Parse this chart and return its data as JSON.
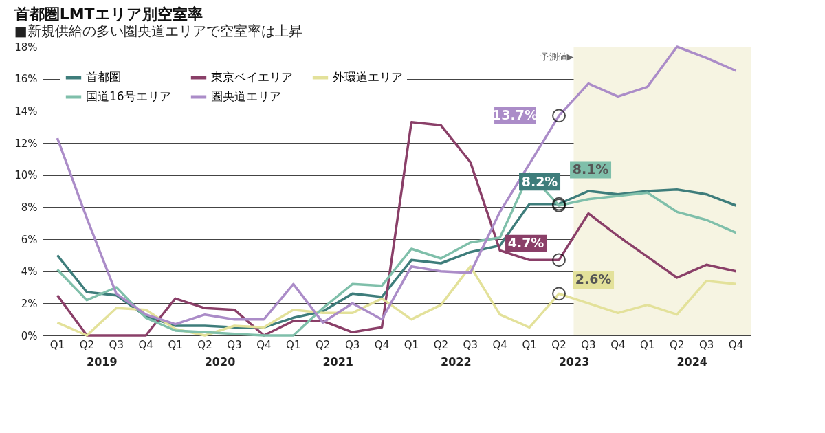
{
  "chart_data": {
    "type": "line",
    "title": "首都圏LMTエリア別空室率",
    "subtitle": "■新規供給の多い圏央道エリアで空室率は上昇",
    "x": [
      2019.125,
      2019.375,
      2019.625,
      2019.875,
      2020.125,
      2020.375,
      2020.625,
      2020.875,
      2021.125,
      2021.375,
      2021.625,
      2021.875,
      2022.125,
      2022.375,
      2022.625,
      2022.875,
      2023.125,
      2023.375,
      2023.625,
      2023.875,
      2024.125,
      2024.375,
      2024.625,
      2024.875
    ],
    "xlim": [
      2019,
      2025
    ],
    "xticks": [
      {
        "value": 2019.5,
        "label": "2019"
      },
      {
        "value": 2020.5,
        "label": "2020"
      },
      {
        "value": 2021.5,
        "label": "2021"
      },
      {
        "value": 2022.5,
        "label": "2022"
      },
      {
        "value": 2023.5,
        "label": "2023"
      },
      {
        "value": 2024.5,
        "label": "2024"
      }
    ],
    "annotations": [
      "Q1",
      "Q2",
      "Q3",
      "Q4",
      "Q1",
      "Q2",
      "Q3",
      "Q4",
      "Q1",
      "Q2",
      "Q3",
      "Q4",
      "Q1",
      "Q2",
      "Q3",
      "Q4",
      "Q1",
      "Q2",
      "Q3",
      "Q4",
      "Q1",
      "Q2",
      "Q3",
      "Q4"
    ],
    "bands": [
      {
        "axis": "x",
        "from": 2023.5,
        "to": 2025,
        "label": "予測値▶",
        "color": "#f6f4e2"
      }
    ],
    "series": [
      {
        "name": "首都圏",
        "color": "#3e7d7b",
        "values": [
          5.0,
          2.7,
          2.5,
          1.2,
          0.6,
          0.6,
          0.5,
          0.5,
          1.1,
          1.5,
          2.6,
          2.4,
          4.7,
          4.5,
          5.2,
          5.6,
          8.2,
          8.2,
          9.0,
          8.8,
          9.0,
          9.1,
          8.8,
          8.1
        ],
        "value_labels": [
          null,
          null,
          null,
          null,
          null,
          null,
          null,
          null,
          null,
          null,
          null,
          null,
          null,
          null,
          null,
          null,
          null,
          "8.2%",
          null,
          null,
          null,
          null,
          null,
          null
        ]
      },
      {
        "name": "東京ベイエリア",
        "color": "#8a3f68",
        "values": [
          2.5,
          0,
          0,
          0,
          2.3,
          1.7,
          1.6,
          0,
          0.9,
          0.9,
          0.2,
          0.5,
          13.3,
          13.1,
          10.8,
          5.3,
          4.7,
          4.7,
          7.6,
          6.2,
          4.9,
          3.6,
          4.4,
          4.0
        ],
        "value_labels": [
          null,
          null,
          null,
          null,
          null,
          null,
          null,
          null,
          null,
          null,
          null,
          null,
          null,
          null,
          null,
          null,
          null,
          "4.7%",
          null,
          null,
          null,
          null,
          null,
          null
        ]
      },
      {
        "name": "外環道エリア",
        "color": "#e3e19a",
        "values": [
          0.8,
          0,
          1.7,
          1.6,
          0.4,
          0,
          0.6,
          0.5,
          1.6,
          1.4,
          1.4,
          2.3,
          1.0,
          1.9,
          4.3,
          1.3,
          0.5,
          2.6,
          2.0,
          1.4,
          1.9,
          1.3,
          3.4,
          3.2
        ],
        "value_labels": [
          null,
          null,
          null,
          null,
          null,
          null,
          null,
          null,
          null,
          null,
          null,
          null,
          null,
          null,
          null,
          null,
          null,
          "2.6%",
          null,
          null,
          null,
          null,
          null,
          null
        ]
      },
      {
        "name": "国道16号エリア",
        "color": "#7fbfaa",
        "values": [
          4.1,
          2.2,
          3.0,
          1.1,
          0.3,
          0.2,
          0.1,
          0,
          0,
          1.7,
          3.2,
          3.1,
          5.4,
          4.8,
          5.8,
          6.1,
          10.1,
          8.1,
          8.5,
          8.7,
          8.9,
          7.7,
          7.2,
          6.4
        ],
        "value_labels": [
          null,
          null,
          null,
          null,
          null,
          null,
          null,
          null,
          null,
          null,
          null,
          null,
          null,
          null,
          null,
          null,
          null,
          "8.1%",
          null,
          null,
          null,
          null,
          null,
          null
        ]
      },
      {
        "name": "圏央道エリア",
        "color": "#ab8cc8",
        "values": [
          12.3,
          7.3,
          2.6,
          1.3,
          0.7,
          1.3,
          1.0,
          1.0,
          3.2,
          0.8,
          2.0,
          1.0,
          4.3,
          4.0,
          3.9,
          7.7,
          10.7,
          13.7,
          15.7,
          14.9,
          15.5,
          18.0,
          17.3,
          16.5
        ],
        "value_labels": [
          null,
          null,
          null,
          null,
          null,
          null,
          null,
          null,
          null,
          null,
          null,
          null,
          null,
          null,
          null,
          null,
          null,
          "13.7%",
          null,
          null,
          null,
          null,
          null,
          null
        ]
      }
    ],
    "ylim": [
      0,
      18
    ],
    "yticks": [
      {
        "value": 0,
        "label": "0%"
      },
      {
        "value": 2,
        "label": "2%"
      },
      {
        "value": 4,
        "label": "4%"
      },
      {
        "value": 6,
        "label": "6%"
      },
      {
        "value": 8,
        "label": "8%"
      },
      {
        "value": 10,
        "label": "10%"
      },
      {
        "value": 12,
        "label": "12%"
      },
      {
        "value": 14,
        "label": "14%"
      },
      {
        "value": 16,
        "label": "16%"
      },
      {
        "value": 18,
        "label": "18%"
      }
    ],
    "grid": "y",
    "legend": "top left",
    "line_style": "solid"
  }
}
